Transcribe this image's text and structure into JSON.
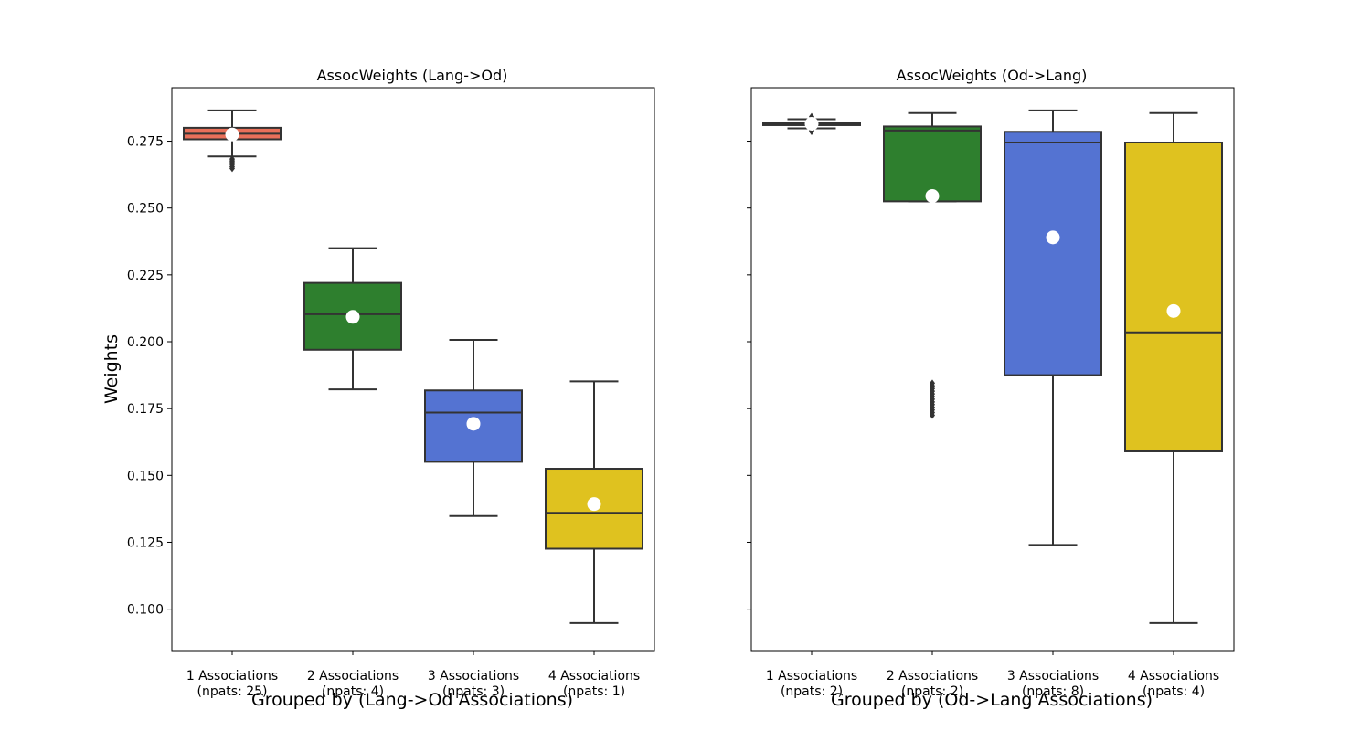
{
  "figure": {
    "ylabel": "Weights",
    "y_ticks": [
      "0.100",
      "0.125",
      "0.150",
      "0.175",
      "0.200",
      "0.225",
      "0.250",
      "0.275"
    ],
    "y_tick_values": [
      0.1,
      0.125,
      0.15,
      0.175,
      0.2,
      0.225,
      0.25,
      0.275
    ],
    "ylim": [
      0.0845,
      0.295
    ],
    "colors": {
      "1 Associations": "#e8705a",
      "2 Associations": "#2e7f2e",
      "3 Associations": "#5473d2",
      "4 Associations": "#dfc21f",
      "line": "#333333",
      "mean_marker": "#ffffff"
    }
  },
  "chart_data": [
    {
      "type": "box",
      "title": "AssocWeights (Lang->Od)",
      "xlabel": "Grouped by (Lang->Od Associations)",
      "ylabel": "Weights",
      "categories": [
        "1 Associations\n(npats: 25)",
        "2 Associations\n(npats: 4)",
        "3 Associations\n(npats: 3)",
        "4 Associations\n(npats: 1)"
      ],
      "category_labels": [
        {
          "line1": "1 Associations",
          "line2": "(npats: 25)"
        },
        {
          "line1": "2 Associations",
          "line2": "(npats: 4)"
        },
        {
          "line1": "3 Associations",
          "line2": "(npats: 3)"
        },
        {
          "line1": "4 Associations",
          "line2": "(npats: 1)"
        }
      ],
      "boxes": [
        {
          "whislo": 0.2693,
          "q1": 0.2757,
          "med": 0.2778,
          "q3": 0.28,
          "whishi": 0.2865,
          "mean": 0.2775,
          "fliers": [
            0.2683,
            0.2676,
            0.267,
            0.2663,
            0.2655,
            0.2648
          ]
        },
        {
          "whislo": 0.1822,
          "q1": 0.197,
          "med": 0.2103,
          "q3": 0.222,
          "whishi": 0.235,
          "mean": 0.2093,
          "fliers": []
        },
        {
          "whislo": 0.1348,
          "q1": 0.1551,
          "med": 0.1735,
          "q3": 0.1818,
          "whishi": 0.2007,
          "mean": 0.1693,
          "fliers": []
        },
        {
          "whislo": 0.0948,
          "q1": 0.1226,
          "med": 0.136,
          "q3": 0.1525,
          "whishi": 0.1852,
          "mean": 0.1393,
          "fliers": []
        }
      ],
      "ylim": [
        0.0845,
        0.295
      ]
    },
    {
      "type": "box",
      "title": "AssocWeights (Od->Lang)",
      "xlabel": "Grouped by (Od->Lang Associations)",
      "ylabel": "",
      "categories": [
        "1 Associations\n(npats: 2)",
        "2 Associations\n(npats: 2)",
        "3 Associations\n(npats: 8)",
        "4 Associations\n(npats: 4)"
      ],
      "category_labels": [
        {
          "line1": "1 Associations",
          "line2": "(npats: 2)"
        },
        {
          "line1": "2 Associations",
          "line2": "(npats: 2)"
        },
        {
          "line1": "3 Associations",
          "line2": "(npats: 8)"
        },
        {
          "line1": "4 Associations",
          "line2": "(npats: 4)"
        }
      ],
      "boxes": [
        {
          "whislo": 0.2798,
          "q1": 0.281,
          "med": 0.2815,
          "q3": 0.282,
          "whishi": 0.2832,
          "mean": 0.2815,
          "fliers": [
            0.2786,
            0.279,
            0.2837,
            0.2842
          ]
        },
        {
          "whislo": 0.2525,
          "q1": 0.2525,
          "med": 0.279,
          "q3": 0.2805,
          "whishi": 0.2855,
          "mean": 0.2545,
          "fliers": [
            0.1845,
            0.1835,
            0.1825,
            0.1815,
            0.1805,
            0.1795,
            0.1785,
            0.1775,
            0.1765,
            0.1755,
            0.1745,
            0.1735,
            0.1725
          ]
        },
        {
          "whislo": 0.124,
          "q1": 0.1875,
          "med": 0.2745,
          "q3": 0.2785,
          "whishi": 0.2865,
          "mean": 0.239,
          "fliers": []
        },
        {
          "whislo": 0.0948,
          "q1": 0.159,
          "med": 0.2035,
          "q3": 0.2745,
          "whishi": 0.2855,
          "mean": 0.2115,
          "fliers": []
        }
      ],
      "ylim": [
        0.0845,
        0.295
      ]
    }
  ]
}
